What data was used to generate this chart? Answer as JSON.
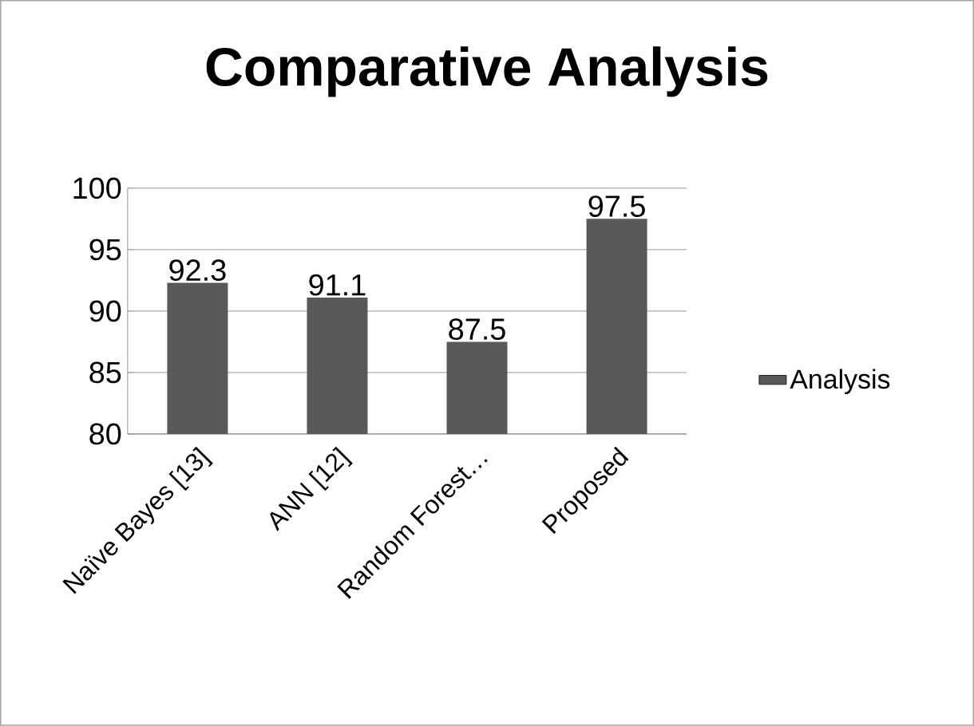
{
  "chart_data": {
    "type": "bar",
    "title": "Comparative Analysis",
    "categories": [
      "Naïve Bayes [13]",
      "ANN [12]",
      "Random Forest…",
      "Proposed"
    ],
    "series": [
      {
        "name": "Analysis",
        "color": "#595959",
        "values": [
          92.3,
          91.1,
          87.5,
          97.5
        ]
      }
    ],
    "ylim": [
      80,
      100
    ],
    "yticks": [
      80,
      85,
      90,
      95,
      100
    ],
    "grid": "y",
    "legend": "right",
    "data_labels": true
  }
}
